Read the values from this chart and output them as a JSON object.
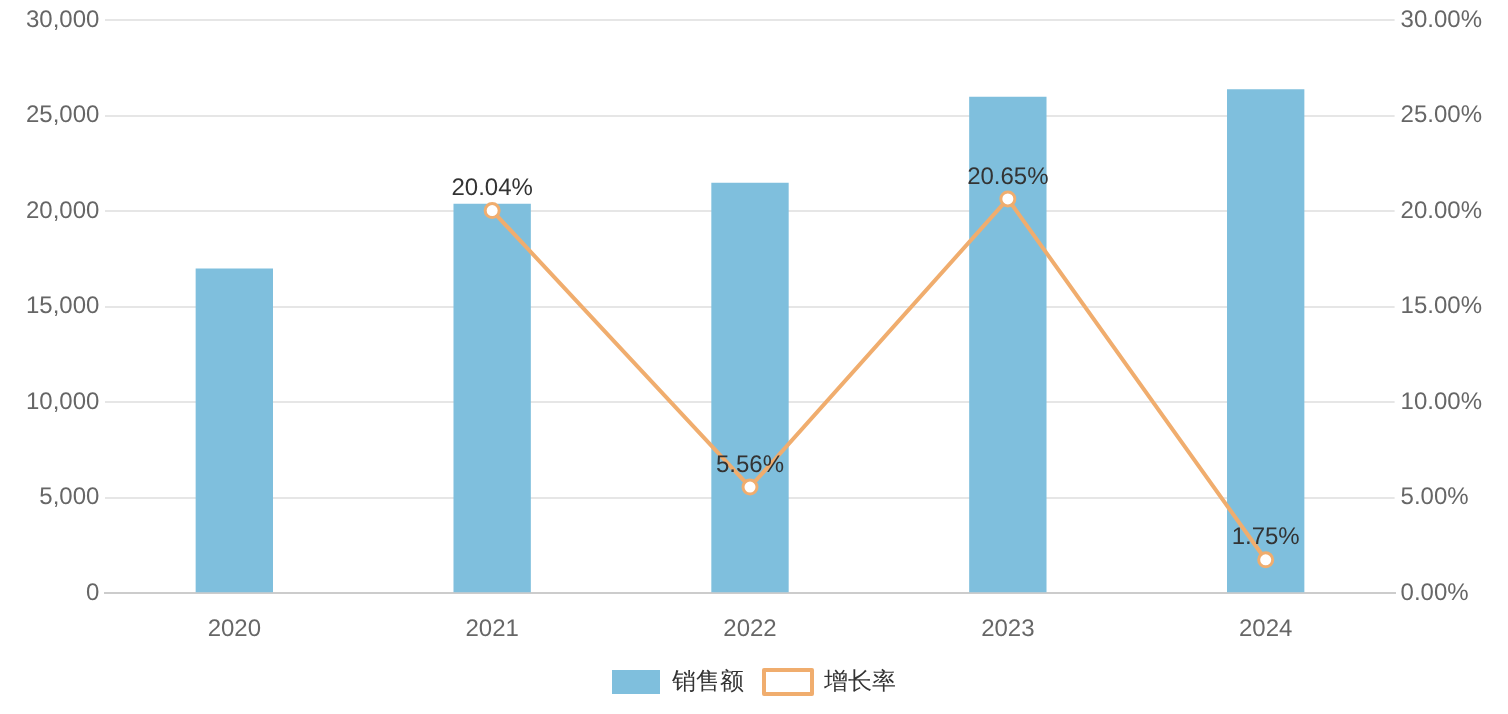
{
  "chart_data": {
    "type": "bar",
    "categories": [
      "2020",
      "2021",
      "2022",
      "2023",
      "2024"
    ],
    "series": [
      {
        "name": "销售额",
        "color": "#7fbfdd",
        "values": [
          17000,
          20400,
          21500,
          26000,
          26400
        ]
      },
      {
        "name": "增长率",
        "type": "line",
        "axis": "y2",
        "color": "#f0ad6e",
        "values": [
          null,
          20.04,
          5.56,
          20.65,
          1.75
        ],
        "value_labels": [
          null,
          "20.04%",
          "5.56%",
          "20.65%",
          "1.75%"
        ]
      }
    ],
    "ylim": [
      0,
      30000
    ],
    "yticks": [
      0,
      {
        "value": 5000,
        "label": "5,000"
      },
      {
        "value": 10000,
        "label": "10,000"
      },
      {
        "value": 15000,
        "label": "15,000"
      },
      {
        "value": 20000,
        "label": "20,000"
      },
      {
        "value": 25000,
        "label": "25,000"
      },
      {
        "value": 30000,
        "label": "30,000"
      }
    ],
    "y2lim": [
      0,
      30
    ],
    "y2ticks": [
      {
        "value": 0,
        "label": "0.00%"
      },
      {
        "value": 5,
        "label": "5.00%"
      },
      {
        "value": 10,
        "label": "10.00%"
      },
      {
        "value": 15,
        "label": "15.00%"
      },
      {
        "value": 20,
        "label": "20.00%"
      },
      {
        "value": 25,
        "label": "25.00%"
      },
      {
        "value": 30,
        "label": "30.00%"
      }
    ],
    "grid": "y",
    "legend": "bottom",
    "marker": "circle",
    "line_style": "solid"
  }
}
